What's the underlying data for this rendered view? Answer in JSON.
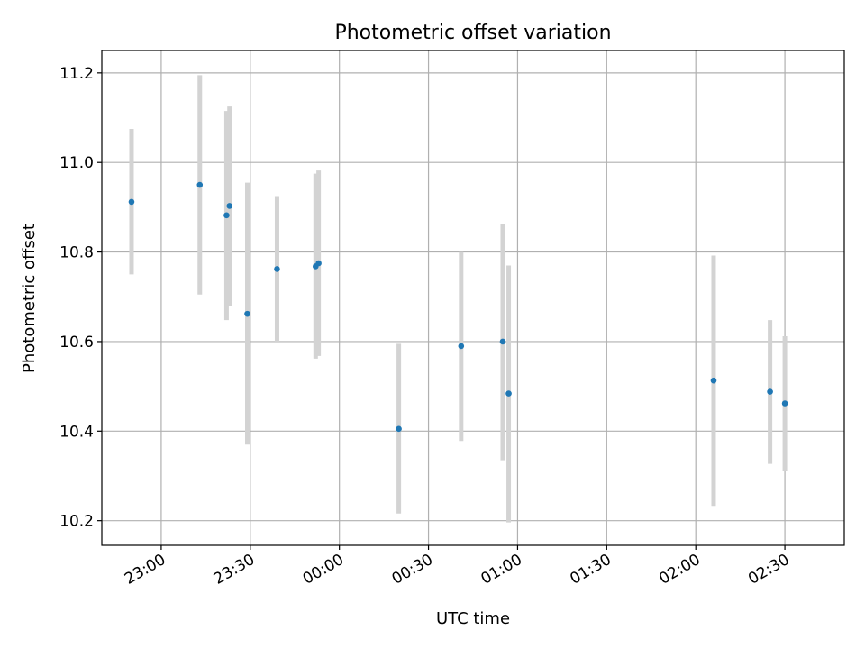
{
  "chart_data": {
    "type": "scatter",
    "title": "Photometric offset variation",
    "xlabel": "UTC time",
    "ylabel": "Photometric offset",
    "xlim": [
      "22:40",
      "02:50"
    ],
    "ylim": [
      10.145,
      11.25
    ],
    "x_ticks": [
      "23:00",
      "23:30",
      "00:00",
      "00:30",
      "01:00",
      "01:30",
      "02:00",
      "02:30"
    ],
    "y_ticks": [
      10.2,
      10.4,
      10.6,
      10.8,
      11.0,
      11.2
    ],
    "grid": true,
    "marker_color": "#1f77b4",
    "errorbar_color": "#d3d3d3",
    "points": [
      {
        "t": "22:50",
        "y": 10.912,
        "ylo": 10.75,
        "yhi": 11.075
      },
      {
        "t": "23:13",
        "y": 10.95,
        "ylo": 10.705,
        "yhi": 11.195
      },
      {
        "t": "23:22",
        "y": 10.882,
        "ylo": 10.648,
        "yhi": 11.115
      },
      {
        "t": "23:23",
        "y": 10.903,
        "ylo": 10.68,
        "yhi": 11.125
      },
      {
        "t": "23:29",
        "y": 10.662,
        "ylo": 10.37,
        "yhi": 10.955
      },
      {
        "t": "23:39",
        "y": 10.762,
        "ylo": 10.598,
        "yhi": 10.925
      },
      {
        "t": "23:52",
        "y": 10.768,
        "ylo": 10.562,
        "yhi": 10.975
      },
      {
        "t": "23:53",
        "y": 10.775,
        "ylo": 10.568,
        "yhi": 10.982
      },
      {
        "t": "00:20",
        "y": 10.405,
        "ylo": 10.216,
        "yhi": 10.595
      },
      {
        "t": "00:41",
        "y": 10.59,
        "ylo": 10.378,
        "yhi": 10.8
      },
      {
        "t": "00:55",
        "y": 10.6,
        "ylo": 10.335,
        "yhi": 10.862
      },
      {
        "t": "00:57",
        "y": 10.484,
        "ylo": 10.196,
        "yhi": 10.77
      },
      {
        "t": "02:06",
        "y": 10.513,
        "ylo": 10.233,
        "yhi": 10.792
      },
      {
        "t": "02:25",
        "y": 10.488,
        "ylo": 10.327,
        "yhi": 10.648
      },
      {
        "t": "02:30",
        "y": 10.462,
        "ylo": 10.312,
        "yhi": 10.612
      }
    ]
  }
}
